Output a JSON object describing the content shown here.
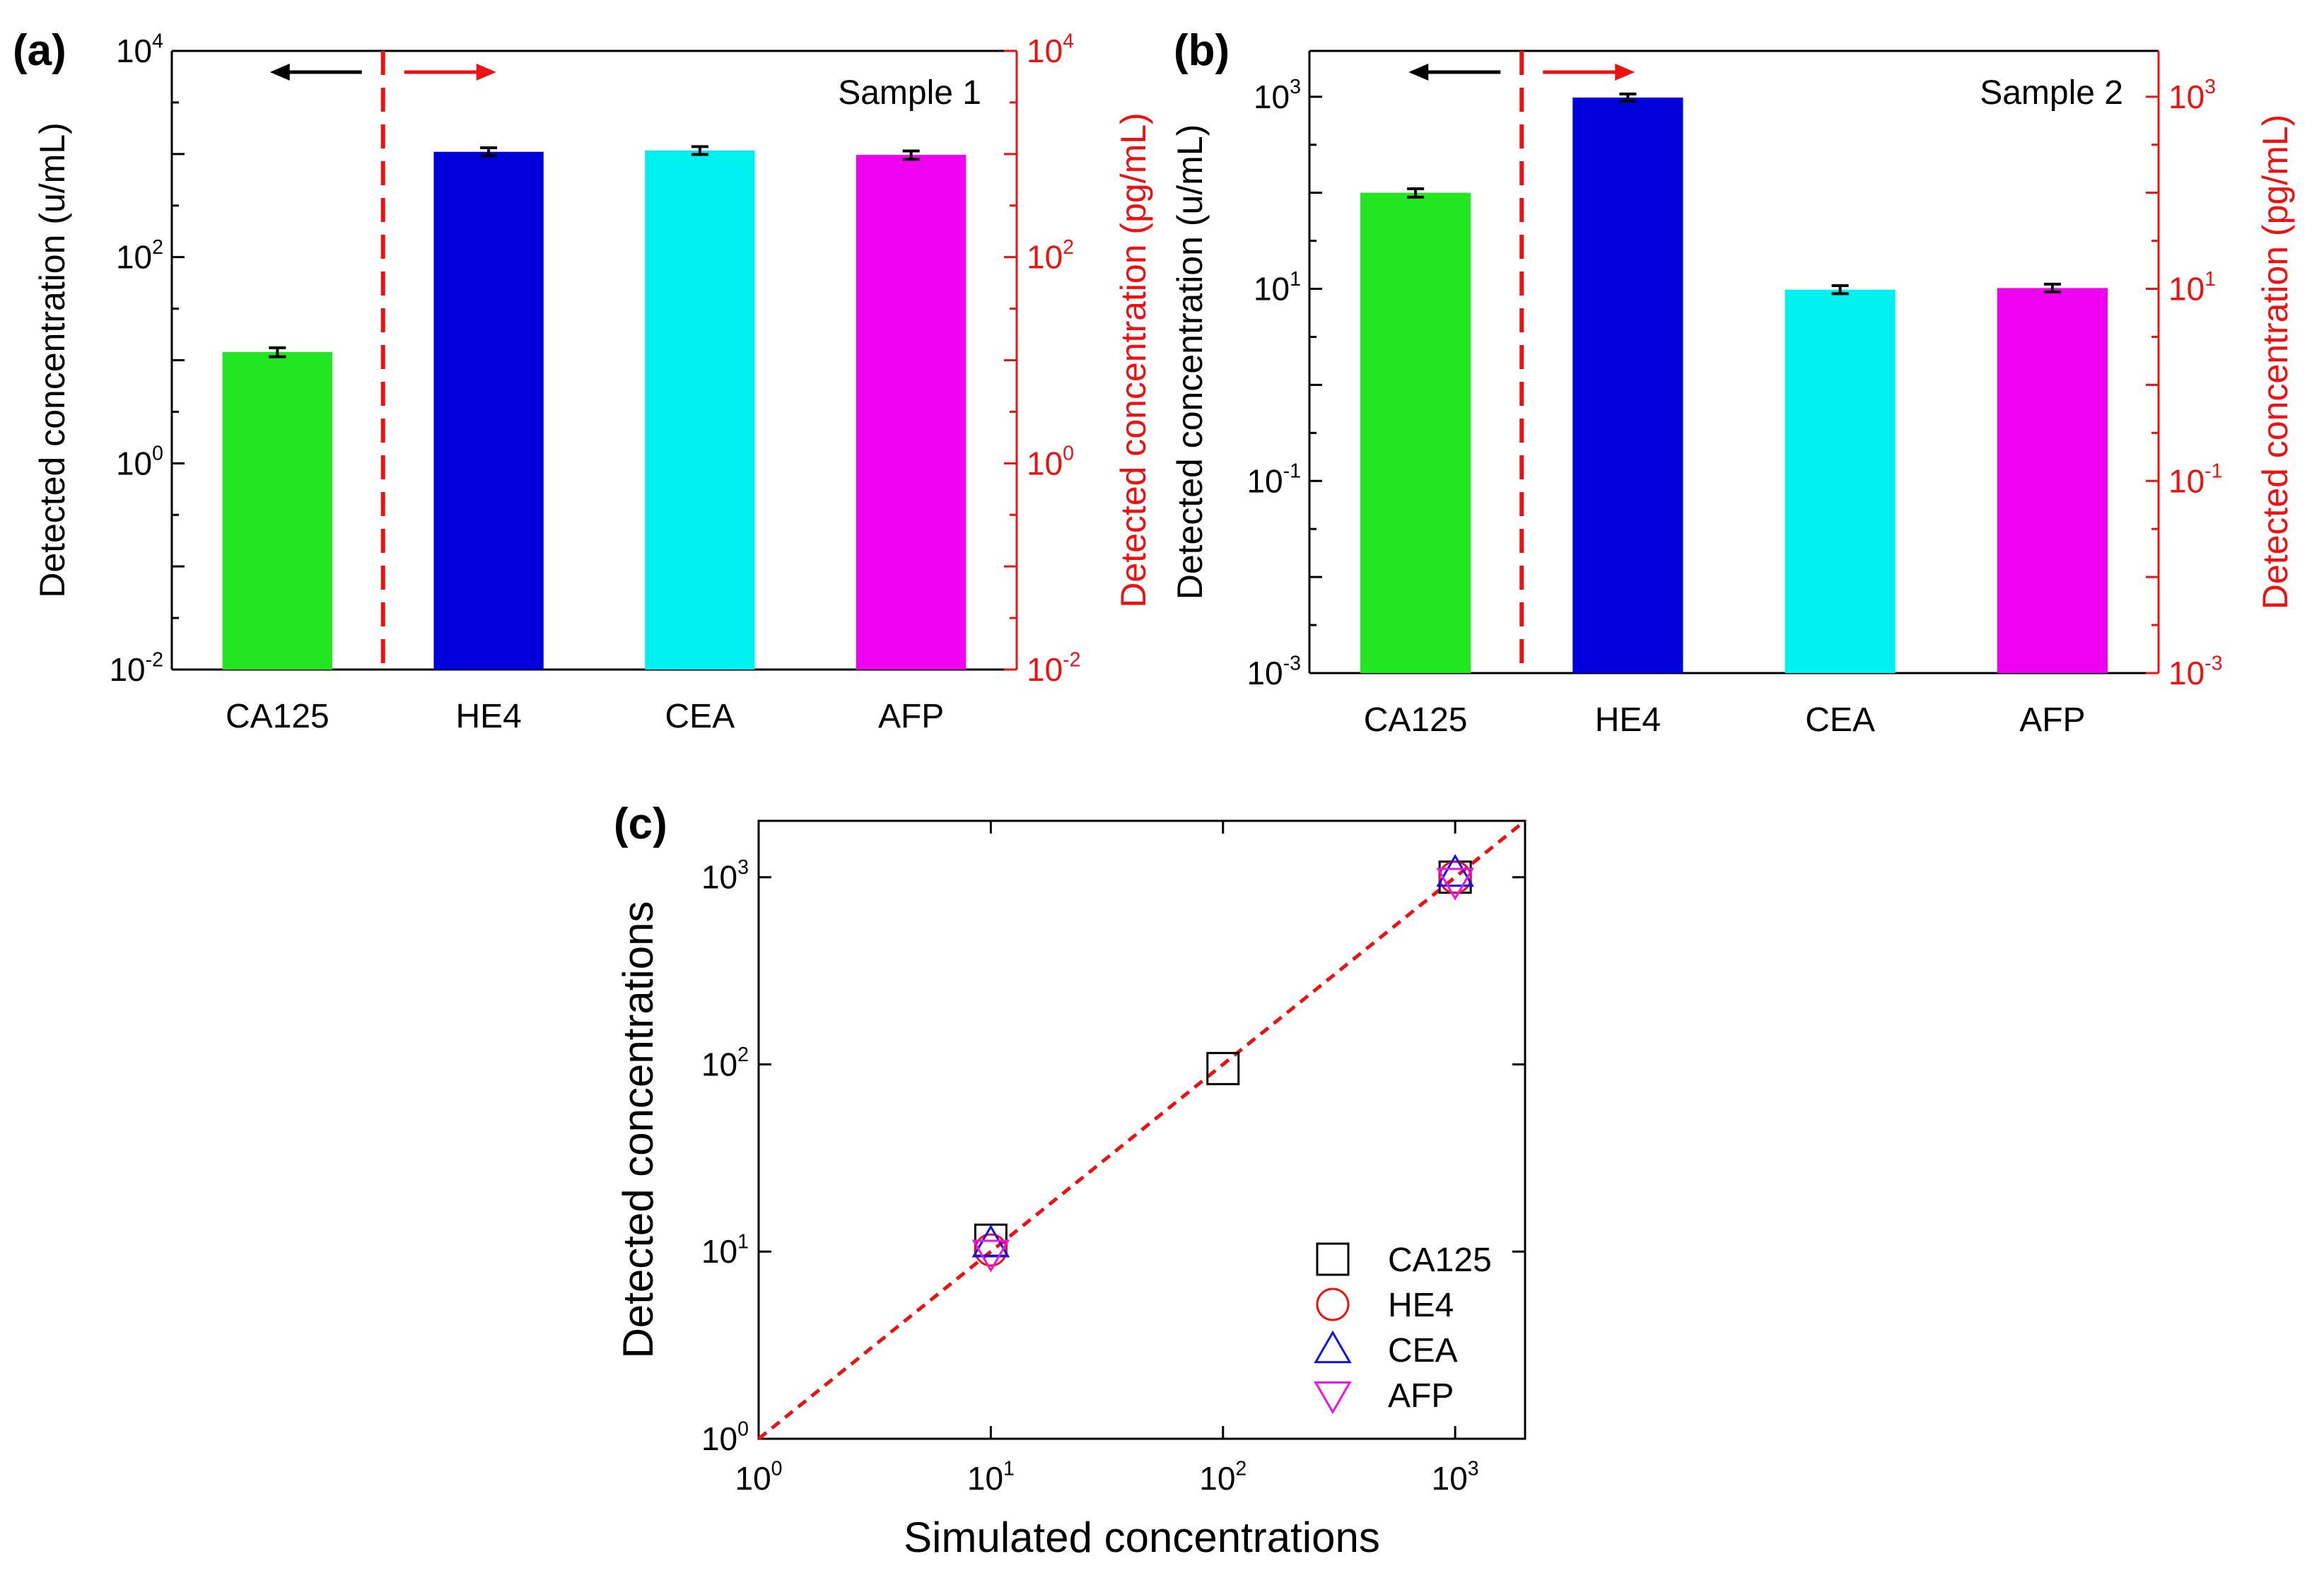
{
  "chart_data": [
    {
      "panel_label": "(a)",
      "type": "bar",
      "scale": "log",
      "annotation": "Sample 1",
      "categories": [
        "CA125",
        "HE4",
        "CEA",
        "AFP"
      ],
      "values": [
        12,
        1050,
        1080,
        980
      ],
      "errors_low": [
        10.8,
        960,
        990,
        890
      ],
      "errors_high": [
        13.2,
        1150,
        1180,
        1070
      ],
      "bar_colors": [
        "#22e622",
        "#0000dd",
        "#00f0f0",
        "#f000f0"
      ],
      "ylabel_left": "Detected concentration (u/mL)",
      "ylabel_right": "Detected concentration (pg/mL)",
      "ylim": [
        0.01,
        10000
      ],
      "left_tick_labels": [
        {
          "base": "10",
          "exp": "-2"
        },
        {
          "base": "10",
          "exp": "0"
        },
        {
          "base": "10",
          "exp": "2"
        },
        {
          "base": "10",
          "exp": "4"
        }
      ],
      "right_tick_labels": [
        {
          "base": "10",
          "exp": "-2"
        },
        {
          "base": "10",
          "exp": "0"
        },
        {
          "base": "10",
          "exp": "2"
        },
        {
          "base": "10",
          "exp": "4"
        }
      ],
      "right_axis_color": "#ee1111",
      "divider": "dashed red line between CA125 and HE4",
      "arrows": "black arrow pointing left (u/mL axis), red arrow pointing right (pg/mL axis)"
    },
    {
      "panel_label": "(b)",
      "type": "bar",
      "scale": "log",
      "annotation": "Sample 2",
      "categories": [
        "CA125",
        "HE4",
        "CEA",
        "AFP"
      ],
      "values": [
        100,
        980,
        9.8,
        10.2
      ],
      "errors_low": [
        90,
        900,
        8.9,
        9.3
      ],
      "errors_high": [
        110,
        1070,
        10.8,
        11.2
      ],
      "bar_colors": [
        "#22e622",
        "#0000dd",
        "#00f0f0",
        "#f000f0"
      ],
      "ylabel_left": "Detected concentration (u/mL)",
      "ylabel_right": "Detected concentration (pg/mL)",
      "ylim": [
        0.001,
        3000
      ],
      "left_tick_labels": [
        {
          "base": "10",
          "exp": "-3"
        },
        {
          "base": "10",
          "exp": "-1"
        },
        {
          "base": "10",
          "exp": "1"
        },
        {
          "base": "10",
          "exp": "3"
        }
      ],
      "right_tick_labels": [
        {
          "base": "10",
          "exp": "-3"
        },
        {
          "base": "10",
          "exp": "-1"
        },
        {
          "base": "10",
          "exp": "1"
        },
        {
          "base": "10",
          "exp": "3"
        }
      ],
      "right_axis_color": "#ee1111"
    },
    {
      "panel_label": "(c)",
      "type": "scatter",
      "scale": "log-log",
      "xlabel": "Simulated concentrations",
      "ylabel": "Detected concentrations",
      "xlim": [
        1,
        2000
      ],
      "ylim": [
        1,
        2000
      ],
      "x_tick_labels": [
        {
          "base": "10",
          "exp": "0"
        },
        {
          "base": "10",
          "exp": "1"
        },
        {
          "base": "10",
          "exp": "2"
        },
        {
          "base": "10",
          "exp": "3"
        }
      ],
      "y_tick_labels": [
        {
          "base": "10",
          "exp": "0"
        },
        {
          "base": "10",
          "exp": "1"
        },
        {
          "base": "10",
          "exp": "2"
        },
        {
          "base": "10",
          "exp": "3"
        }
      ],
      "reference_line": "y = x, dashed red",
      "series": [
        {
          "name": "CA125",
          "marker": "square",
          "color": "#000000",
          "points": [
            {
              "x": 10,
              "y": 11.5
            },
            {
              "x": 100,
              "y": 95
            },
            {
              "x": 1000,
              "y": 1000
            }
          ]
        },
        {
          "name": "HE4",
          "marker": "circle",
          "color": "#ee1111",
          "points": [
            {
              "x": 10,
              "y": 10.2
            },
            {
              "x": 1000,
              "y": 1000
            }
          ]
        },
        {
          "name": "CEA",
          "marker": "triangle-up",
          "color": "#1111ee",
          "points": [
            {
              "x": 10,
              "y": 11
            },
            {
              "x": 1000,
              "y": 1050
            }
          ]
        },
        {
          "name": "AFP",
          "marker": "triangle-down",
          "color": "#ee11ee",
          "points": [
            {
              "x": 10,
              "y": 9.8
            },
            {
              "x": 1000,
              "y": 950
            }
          ]
        }
      ]
    }
  ]
}
